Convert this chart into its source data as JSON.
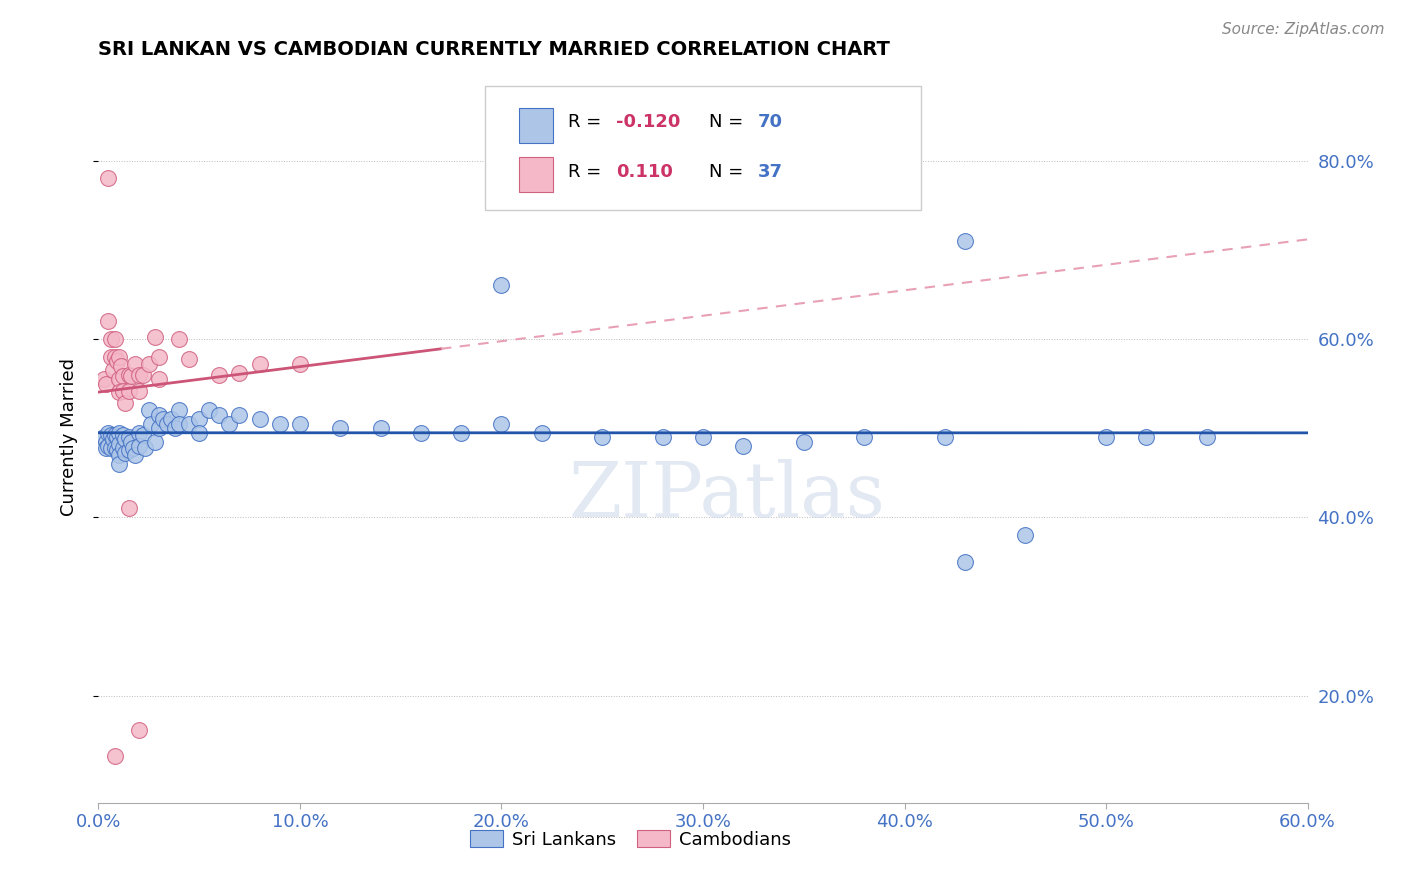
{
  "title": "SRI LANKAN VS CAMBODIAN CURRENTLY MARRIED CORRELATION CHART",
  "source": "Source: ZipAtlas.com",
  "ylabel": "Currently Married",
  "sri_lankan_color": "#adc6e8",
  "sri_lankan_edge": "#4472c4",
  "cambodian_color": "#f4b8c8",
  "cambodian_edge": "#d06080",
  "sri_lankan_line_color": "#2255aa",
  "cambodian_solid_color": "#cc5577",
  "cambodian_dashed_color": "#e8a0b5",
  "R_label_color": "#cc3366",
  "N_label_color": "#4472c4",
  "text_color": "#222222",
  "watermark": "ZIPatlas",
  "watermark_color": "#ccd8ea",
  "xlim": [
    0.0,
    0.6
  ],
  "ylim": [
    0.08,
    0.9
  ],
  "yticks": [
    0.2,
    0.4,
    0.6,
    0.8
  ],
  "xticks": [
    0.0,
    0.1,
    0.2,
    0.3,
    0.4,
    0.5,
    0.6
  ],
  "sri_x": [
    0.003,
    0.004,
    0.004,
    0.005,
    0.005,
    0.006,
    0.006,
    0.007,
    0.008,
    0.008,
    0.009,
    0.009,
    0.01,
    0.01,
    0.01,
    0.01,
    0.012,
    0.012,
    0.013,
    0.013,
    0.015,
    0.015,
    0.016,
    0.017,
    0.018,
    0.02,
    0.02,
    0.022,
    0.023,
    0.025,
    0.026,
    0.028,
    0.03,
    0.03,
    0.032,
    0.034,
    0.036,
    0.038,
    0.04,
    0.04,
    0.045,
    0.05,
    0.05,
    0.055,
    0.06,
    0.065,
    0.07,
    0.08,
    0.09,
    0.1,
    0.12,
    0.14,
    0.16,
    0.18,
    0.2,
    0.22,
    0.25,
    0.28,
    0.3,
    0.32,
    0.35,
    0.38,
    0.42,
    0.43,
    0.46,
    0.5,
    0.52,
    0.55,
    0.2,
    0.43
  ],
  "sri_y": [
    0.49,
    0.485,
    0.478,
    0.495,
    0.48,
    0.492,
    0.478,
    0.488,
    0.492,
    0.478,
    0.49,
    0.475,
    0.495,
    0.482,
    0.47,
    0.46,
    0.492,
    0.478,
    0.488,
    0.472,
    0.49,
    0.476,
    0.485,
    0.478,
    0.47,
    0.495,
    0.48,
    0.492,
    0.478,
    0.52,
    0.505,
    0.485,
    0.515,
    0.5,
    0.51,
    0.505,
    0.51,
    0.5,
    0.52,
    0.505,
    0.505,
    0.51,
    0.495,
    0.52,
    0.515,
    0.505,
    0.515,
    0.51,
    0.505,
    0.505,
    0.5,
    0.5,
    0.495,
    0.495,
    0.505,
    0.495,
    0.49,
    0.49,
    0.49,
    0.48,
    0.485,
    0.49,
    0.49,
    0.71,
    0.38,
    0.49,
    0.49,
    0.49,
    0.66,
    0.35
  ],
  "cam_x": [
    0.003,
    0.004,
    0.005,
    0.006,
    0.006,
    0.007,
    0.008,
    0.008,
    0.009,
    0.01,
    0.01,
    0.01,
    0.011,
    0.012,
    0.012,
    0.013,
    0.015,
    0.015,
    0.016,
    0.018,
    0.02,
    0.02,
    0.022,
    0.025,
    0.028,
    0.03,
    0.03,
    0.04,
    0.045,
    0.06,
    0.07,
    0.08,
    0.1,
    0.005,
    0.008,
    0.015,
    0.02
  ],
  "cam_y": [
    0.555,
    0.55,
    0.62,
    0.6,
    0.58,
    0.565,
    0.6,
    0.58,
    0.575,
    0.58,
    0.555,
    0.54,
    0.57,
    0.558,
    0.542,
    0.528,
    0.56,
    0.542,
    0.558,
    0.572,
    0.56,
    0.542,
    0.56,
    0.572,
    0.602,
    0.58,
    0.555,
    0.6,
    0.578,
    0.56,
    0.562,
    0.572,
    0.572,
    0.78,
    0.132,
    0.41,
    0.162
  ]
}
